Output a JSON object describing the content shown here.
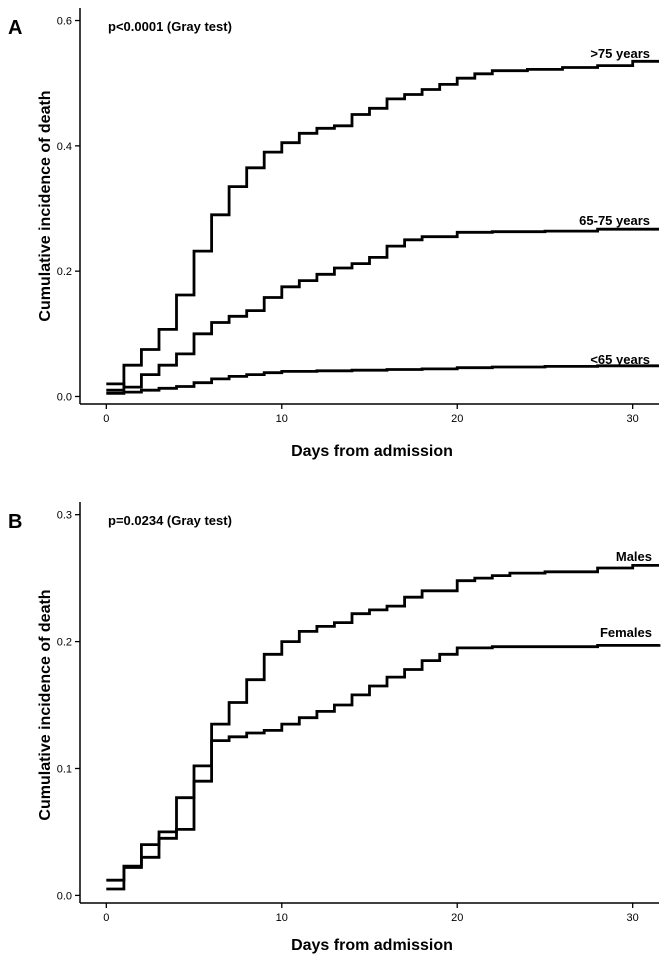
{
  "chart_data": [
    {
      "type": "line",
      "panel_label": "A",
      "annotation": "p<0.0001 (Gray test)",
      "xlabel": "Days from admission",
      "ylabel": "Cumulative incidence of death",
      "xlim": [
        -1.5,
        31.5
      ],
      "ylim": [
        -0.012,
        0.62
      ],
      "xticks": [
        0,
        10,
        20,
        30
      ],
      "xtick_labels": [
        "0",
        "10",
        "20",
        "30"
      ],
      "yticks": [
        0.0,
        0.2,
        0.4,
        0.6
      ],
      "ytick_labels": [
        "0.0",
        "0.2",
        "0.4",
        "0.6"
      ],
      "step": true,
      "series": [
        {
          "name": ">75 years",
          "label": ">75 years",
          "x": [
            0,
            1,
            2,
            3,
            4,
            5,
            6,
            7,
            8,
            9,
            10,
            11,
            12,
            13,
            14,
            15,
            16,
            17,
            18,
            19,
            20,
            21,
            22,
            24,
            26,
            28,
            30,
            31.5
          ],
          "y": [
            0.01,
            0.05,
            0.075,
            0.107,
            0.162,
            0.232,
            0.29,
            0.335,
            0.365,
            0.39,
            0.405,
            0.42,
            0.428,
            0.432,
            0.45,
            0.46,
            0.475,
            0.482,
            0.49,
            0.498,
            0.508,
            0.515,
            0.52,
            0.522,
            0.525,
            0.528,
            0.535,
            0.535
          ]
        },
        {
          "name": "65-75 years",
          "label": "65-75 years",
          "x": [
            0,
            1,
            2,
            3,
            4,
            5,
            6,
            7,
            8,
            9,
            10,
            11,
            12,
            13,
            14,
            15,
            16,
            17,
            18,
            20,
            22,
            25,
            28,
            31.5
          ],
          "y": [
            0.02,
            0.015,
            0.035,
            0.05,
            0.068,
            0.1,
            0.118,
            0.128,
            0.137,
            0.158,
            0.175,
            0.185,
            0.195,
            0.205,
            0.212,
            0.222,
            0.24,
            0.25,
            0.255,
            0.262,
            0.263,
            0.264,
            0.267,
            0.267
          ]
        },
        {
          "name": "<65 years",
          "label": "<65 years",
          "x": [
            0,
            1,
            2,
            3,
            4,
            5,
            6,
            7,
            8,
            9,
            10,
            12,
            14,
            16,
            18,
            20,
            22,
            25,
            28,
            31.5
          ],
          "y": [
            0.005,
            0.007,
            0.01,
            0.013,
            0.016,
            0.022,
            0.028,
            0.032,
            0.035,
            0.038,
            0.04,
            0.041,
            0.042,
            0.043,
            0.044,
            0.046,
            0.047,
            0.048,
            0.049,
            0.049
          ]
        }
      ]
    },
    {
      "type": "line",
      "panel_label": "B",
      "annotation": "p=0.0234 (Gray test)",
      "xlabel": "Days from admission",
      "ylabel": "Cumulative incidence of death",
      "xlim": [
        -1.5,
        31.5
      ],
      "ylim": [
        -0.006,
        0.31
      ],
      "xticks": [
        0,
        10,
        20,
        30
      ],
      "xtick_labels": [
        "0",
        "10",
        "20",
        "30"
      ],
      "yticks": [
        0.0,
        0.1,
        0.2,
        0.3
      ],
      "ytick_labels": [
        "0.0",
        "0.1",
        "0.2",
        "0.3"
      ],
      "step": true,
      "series": [
        {
          "name": "Males",
          "label": "Males",
          "x": [
            0,
            1,
            2,
            3,
            4,
            5,
            6,
            7,
            8,
            9,
            10,
            11,
            12,
            13,
            14,
            15,
            16,
            17,
            18,
            20,
            21,
            22,
            23,
            25,
            28,
            30,
            31.5
          ],
          "y": [
            0.012,
            0.022,
            0.03,
            0.045,
            0.052,
            0.09,
            0.135,
            0.152,
            0.17,
            0.19,
            0.2,
            0.208,
            0.212,
            0.215,
            0.222,
            0.225,
            0.228,
            0.235,
            0.24,
            0.248,
            0.25,
            0.252,
            0.254,
            0.255,
            0.258,
            0.26,
            0.26
          ]
        },
        {
          "name": "Females",
          "label": "Females",
          "x": [
            0,
            1,
            2,
            3,
            4,
            5,
            6,
            7,
            8,
            9,
            10,
            11,
            12,
            13,
            14,
            15,
            16,
            17,
            18,
            19,
            20,
            22,
            25,
            28,
            31.5
          ],
          "y": [
            0.005,
            0.023,
            0.04,
            0.05,
            0.077,
            0.102,
            0.122,
            0.125,
            0.128,
            0.13,
            0.135,
            0.14,
            0.145,
            0.15,
            0.158,
            0.165,
            0.172,
            0.178,
            0.185,
            0.19,
            0.195,
            0.196,
            0.196,
            0.197,
            0.198
          ]
        }
      ]
    }
  ]
}
